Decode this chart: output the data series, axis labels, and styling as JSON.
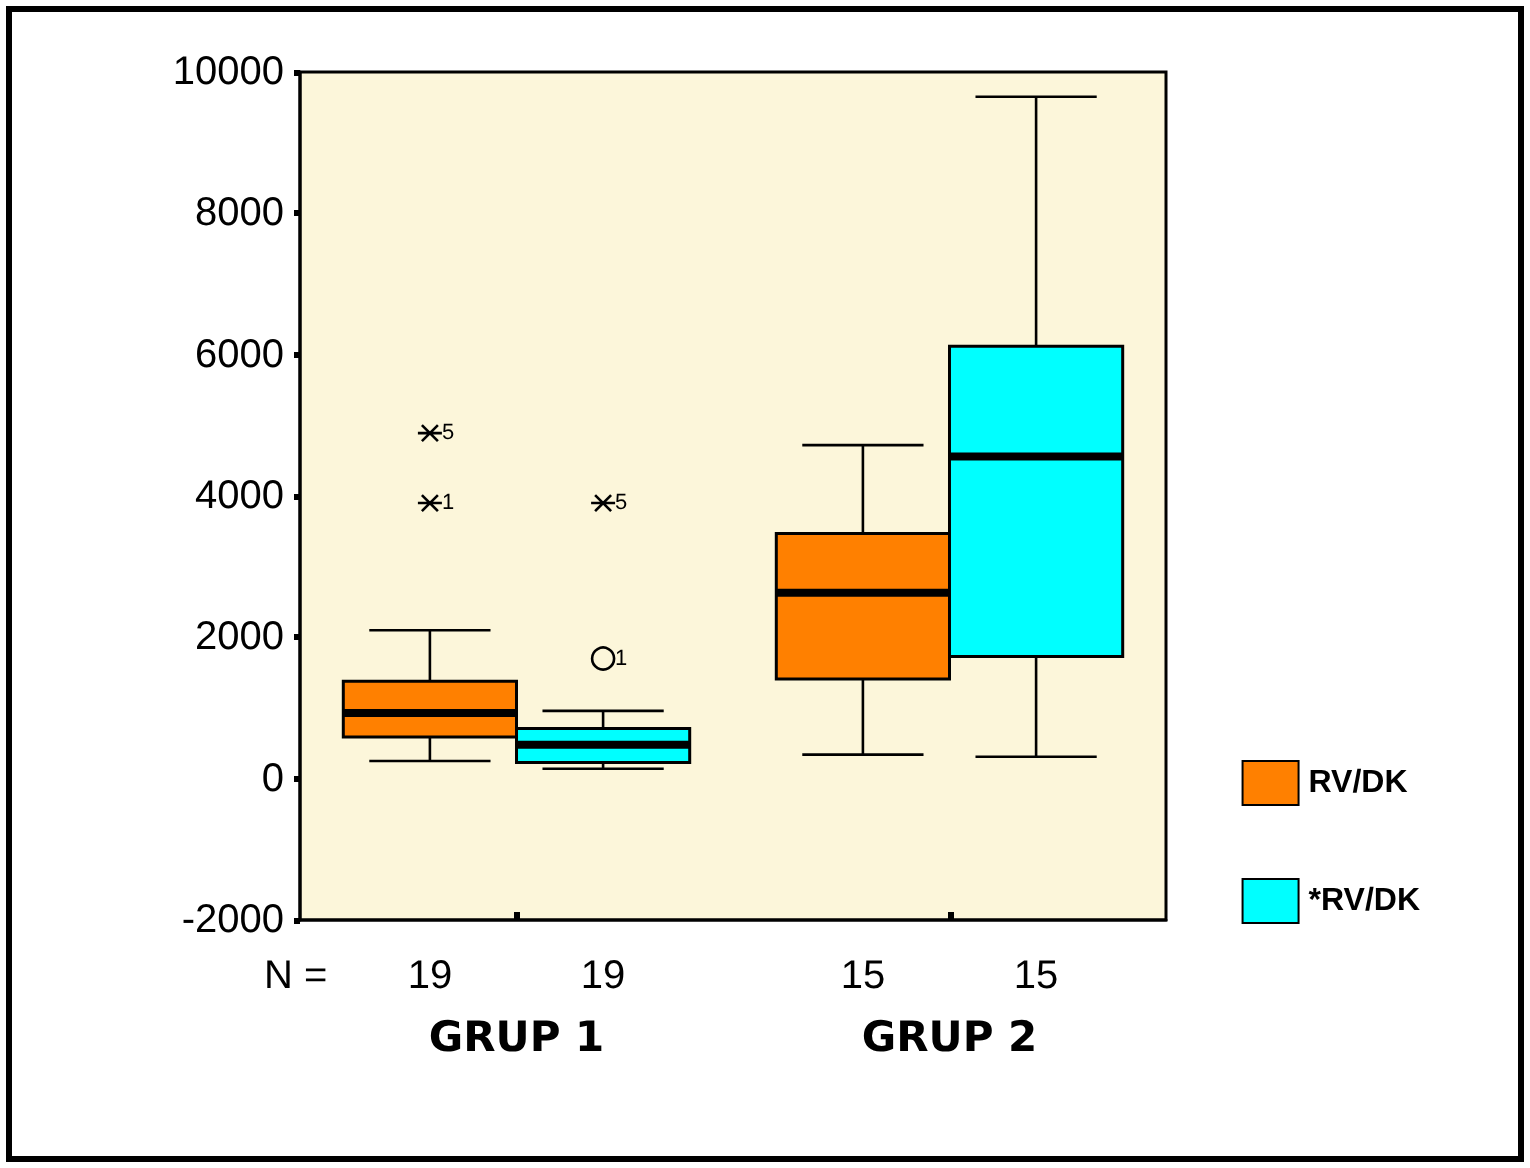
{
  "chart_data": {
    "type": "box",
    "categories": [
      "GRUP 1",
      "GRUP 2"
    ],
    "series": [
      {
        "name": "RV/DK",
        "color": "#ff8000",
        "boxes": [
          {
            "low": 250,
            "q1": 590,
            "median": 930,
            "q3": 1380,
            "high": 2100,
            "outliers": [
              4890,
              3900
            ]
          },
          {
            "low": 340,
            "q1": 1410,
            "median": 2630,
            "q3": 3470,
            "high": 4720
          }
        ]
      },
      {
        "name": "*RV/DK",
        "color": "#00ffff",
        "boxes": [
          {
            "low": 140,
            "q1": 230,
            "median": 480,
            "q3": 710,
            "high": 960,
            "outliers": [
              3900,
              1700
            ]
          },
          {
            "low": 310,
            "q1": 1730,
            "median": 4560,
            "q3": 6120,
            "high": 9650
          }
        ]
      }
    ],
    "ylim": [
      -2000,
      10000
    ],
    "yticks": [
      -2000,
      0,
      2000,
      4000,
      6000,
      8000,
      10000
    ],
    "grid": false,
    "legend": "right",
    "annotations": [
      "N =",
      "19",
      "19",
      "15",
      "15",
      "5",
      "1",
      "5",
      "1"
    ]
  }
}
